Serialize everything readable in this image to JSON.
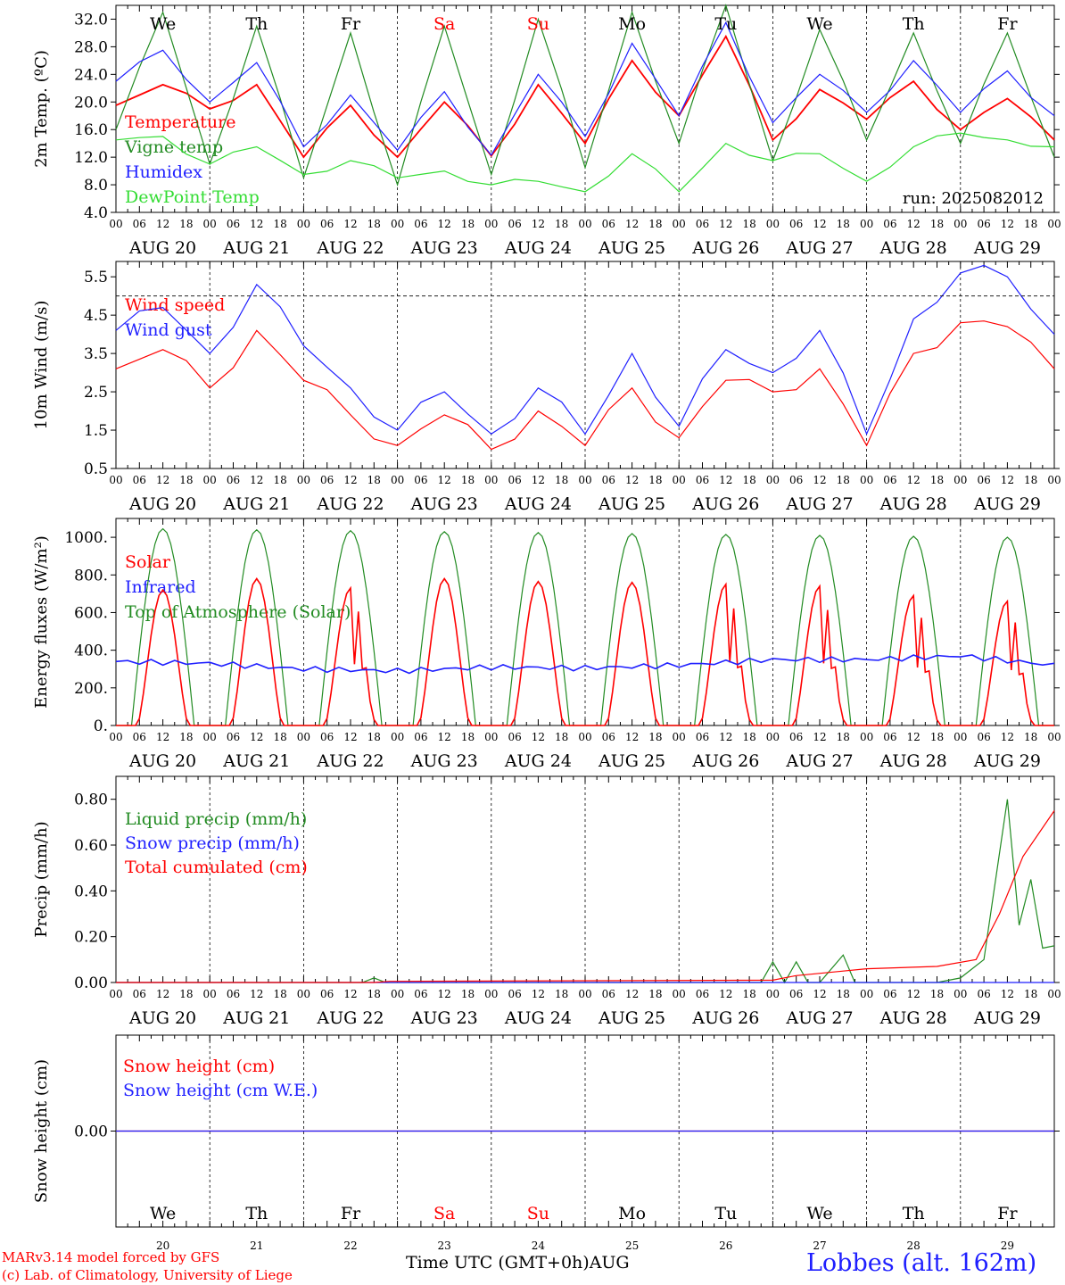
{
  "run_label": "run: 2025082012",
  "footer": {
    "model": "MARv3.14 model forced by GFS",
    "copyright": "(c) Lab. of Climatology, University of Liege",
    "axis_title": "Time UTC (GMT+0h)",
    "month": "AUG",
    "station": "Lobbes (alt. 162m)"
  },
  "hour_ticks": [
    "00",
    "06",
    "12",
    "18"
  ],
  "end_tick": "00",
  "date_labels": [
    "AUG 20",
    "AUG 21",
    "AUG 22",
    "AUG 23",
    "AUG 24",
    "AUG 25",
    "AUG 26",
    "AUG 27",
    "AUG 28",
    "AUG 29"
  ],
  "day_numbers": [
    "20",
    "21",
    "22",
    "23",
    "24",
    "25",
    "26",
    "27",
    "28",
    "29"
  ],
  "weekdays": [
    "We",
    "Th",
    "Fr",
    "Sa",
    "Su",
    "Mo",
    "Tu",
    "We",
    "Th",
    "Fr"
  ],
  "weekday_colors": [
    "#000000",
    "#000000",
    "#000000",
    "#ff0000",
    "#ff0000",
    "#000000",
    "#000000",
    "#000000",
    "#000000",
    "#000000"
  ],
  "colors": {
    "red": "#ff0000",
    "green": "#228b22",
    "blue": "#1f1fff",
    "lightgreen": "#33dd33"
  },
  "chart_data": [
    {
      "type": "line",
      "ylabel": "2m Temp. (ºC)",
      "ylim": [
        4,
        34
      ],
      "yticks": [
        "4.0",
        "8.0",
        "12.0",
        "16.0",
        "20.0",
        "24.0",
        "28.0",
        "32.0"
      ],
      "x": [
        0,
        12,
        24,
        36,
        48,
        60,
        72,
        84,
        96,
        108,
        120,
        132,
        144,
        156,
        168,
        180,
        192,
        204,
        216,
        228,
        240
      ],
      "series": [
        {
          "name": "Temperature",
          "color": "#ff0000",
          "values": [
            19.5,
            22.5,
            19,
            22.5,
            12,
            19.5,
            12,
            20,
            12.2,
            22.5,
            14,
            26,
            18,
            29.5,
            14.5,
            21.8,
            17.5,
            23,
            16,
            20.5,
            14.5
          ]
        },
        {
          "name": "Vigne temp",
          "color": "#228b22",
          "values": [
            16,
            33,
            11,
            31,
            9,
            30,
            8,
            31,
            9.5,
            32,
            10.5,
            33,
            14,
            34,
            11.5,
            30.5,
            14.5,
            30,
            14,
            30,
            12
          ]
        },
        {
          "name": "Humidex",
          "color": "#1f1fff",
          "values": [
            23,
            27.5,
            20,
            25.7,
            13.5,
            21,
            13,
            21.5,
            12.3,
            24,
            15,
            28.5,
            18,
            31.5,
            17,
            24,
            18.5,
            26,
            18.5,
            24.5,
            18
          ]
        },
        {
          "name": "DewPoint Temp",
          "color": "#33dd33",
          "values": [
            14.5,
            15,
            11,
            13.5,
            9.5,
            11.5,
            9,
            10,
            8,
            8.5,
            7,
            12.5,
            7,
            14,
            11.5,
            12.5,
            8.5,
            13.5,
            15.5,
            14.5,
            13.5
          ]
        }
      ]
    },
    {
      "type": "line",
      "ylabel": "10m Wind (m/s)",
      "ylim": [
        0.5,
        5.9
      ],
      "yticks": [
        "0.5",
        "1.5",
        "2.5",
        "3.5",
        "4.5",
        "5.5"
      ],
      "ref_line": 5.0,
      "x": [
        0,
        12,
        24,
        36,
        48,
        60,
        72,
        84,
        96,
        108,
        120,
        132,
        144,
        156,
        168,
        180,
        192,
        204,
        216,
        228,
        240
      ],
      "series": [
        {
          "name": "Wind speed",
          "color": "#ff0000",
          "values": [
            3.1,
            3.6,
            2.6,
            4.1,
            2.8,
            1.9,
            1.1,
            1.9,
            1.0,
            2.0,
            1.1,
            2.6,
            1.3,
            2.8,
            2.5,
            3.1,
            1.1,
            3.5,
            4.3,
            4.2,
            3.1
          ]
        },
        {
          "name": "Wind gust",
          "color": "#1f1fff",
          "values": [
            4.1,
            4.7,
            3.5,
            5.3,
            3.7,
            2.6,
            1.5,
            2.5,
            1.4,
            2.6,
            1.4,
            3.5,
            1.6,
            3.6,
            3.0,
            4.1,
            1.4,
            4.4,
            5.6,
            5.5,
            4.0
          ]
        }
      ]
    },
    {
      "type": "line",
      "ylabel": "Energy fluxes (W/m²)",
      "ylim": [
        0,
        1100
      ],
      "yticks": [
        "0.",
        "200.",
        "400.",
        "600.",
        "800.",
        "1000."
      ],
      "days": [
        {
          "toa": 1045,
          "solar": 720
        },
        {
          "toa": 1040,
          "solar": 780
        },
        {
          "toa": 1035,
          "solar": 730
        },
        {
          "toa": 1030,
          "solar": 780
        },
        {
          "toa": 1025,
          "solar": 765
        },
        {
          "toa": 1020,
          "solar": 760
        },
        {
          "toa": 1015,
          "solar": 750
        },
        {
          "toa": 1010,
          "solar": 740
        },
        {
          "toa": 1005,
          "solar": 690
        },
        {
          "toa": 1000,
          "solar": 660
        }
      ],
      "series": [
        {
          "name": "Solar",
          "color": "#ff0000"
        },
        {
          "name": "Infrared",
          "color": "#1f1fff",
          "x": [
            0,
            24,
            48,
            72,
            96,
            120,
            144,
            168,
            192,
            216,
            240
          ],
          "values": [
            340,
            330,
            300,
            290,
            310,
            305,
            320,
            350,
            350,
            370,
            320
          ]
        },
        {
          "name": "Top of Atmosphere (Solar)",
          "color": "#228b22"
        }
      ]
    },
    {
      "type": "line",
      "ylabel": "Precip (mm/h)",
      "ylim": [
        0,
        0.9
      ],
      "yticks": [
        "0.00",
        "0.20",
        "0.40",
        "0.60",
        "0.80"
      ],
      "series": [
        {
          "name": "Liquid precip (mm/h)",
          "color": "#228b22",
          "x": [
            0,
            63,
            66,
            69,
            165,
            168,
            171,
            174,
            177,
            180,
            186,
            189,
            192,
            210,
            216,
            222,
            228,
            231,
            234,
            237,
            240
          ],
          "values": [
            0,
            0,
            0.02,
            0,
            0,
            0.09,
            0,
            0.09,
            0,
            0,
            0.12,
            0,
            0,
            0,
            0.02,
            0.1,
            0.8,
            0.25,
            0.45,
            0.15,
            0.16
          ]
        },
        {
          "name": "Snow precip (mm/h)",
          "color": "#1f1fff",
          "x": [
            0,
            240
          ],
          "values": [
            0,
            0
          ]
        },
        {
          "name": "Total cumulated (cm)",
          "color": "#ff0000",
          "x": [
            0,
            66,
            70,
            168,
            174,
            186,
            192,
            210,
            220,
            226,
            232,
            240
          ],
          "values": [
            0,
            0,
            0.005,
            0.01,
            0.03,
            0.05,
            0.06,
            0.07,
            0.1,
            0.3,
            0.55,
            0.75
          ]
        }
      ]
    },
    {
      "type": "line",
      "ylabel": "Snow height (cm)",
      "ylim": [
        -1,
        1
      ],
      "yticks": [
        "0.00"
      ],
      "series": [
        {
          "name": "Snow height (cm)",
          "color": "#ff0000",
          "x": [
            0,
            240
          ],
          "values": [
            0,
            0
          ]
        },
        {
          "name": "Snow height (cm W.E.)",
          "color": "#1f1fff",
          "x": [
            0,
            240
          ],
          "values": [
            0,
            0
          ]
        }
      ]
    }
  ]
}
